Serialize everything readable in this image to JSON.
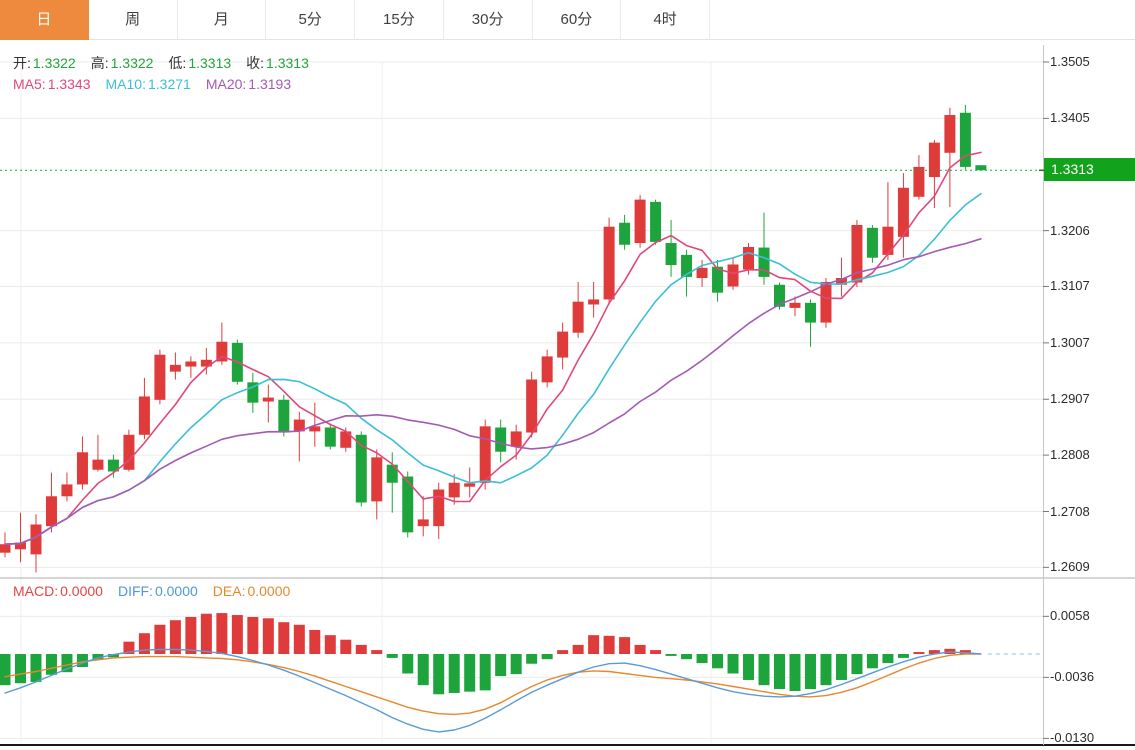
{
  "tabs": [
    {
      "label": "日",
      "active": true
    },
    {
      "label": "周",
      "active": false
    },
    {
      "label": "月",
      "active": false
    },
    {
      "label": "5分",
      "active": false
    },
    {
      "label": "15分",
      "active": false
    },
    {
      "label": "30分",
      "active": false
    },
    {
      "label": "60分",
      "active": false
    },
    {
      "label": "4时",
      "active": false
    }
  ],
  "ohlc_legend": [
    {
      "name": "open-value",
      "label": "开:",
      "value": "1.3322"
    },
    {
      "name": "high-value",
      "label": "高:",
      "value": "1.3322"
    },
    {
      "name": "low-value",
      "label": "低:",
      "value": "1.3313"
    },
    {
      "name": "close-value",
      "label": "收:",
      "value": "1.3313"
    }
  ],
  "ma_legend": [
    {
      "name": "ma5-value",
      "label": "MA5:",
      "value": "1.3343",
      "color": "#e0487c"
    },
    {
      "name": "ma10-value",
      "label": "MA10:",
      "value": "1.3271",
      "color": "#3bbfd6"
    },
    {
      "name": "ma20-value",
      "label": "MA20:",
      "value": "1.3193",
      "color": "#a45ab4"
    }
  ],
  "macd_legend": [
    {
      "name": "macd-value",
      "label": "MACD:",
      "value": "0.0000",
      "color": "#e04646"
    },
    {
      "name": "diff-value",
      "label": "DIFF:",
      "value": "0.0000",
      "color": "#4f97d9"
    },
    {
      "name": "dea-value",
      "label": "DEA:",
      "value": "0.0000",
      "color": "#e8872e"
    }
  ],
  "price_axis": {
    "ticks": [
      "1.3505",
      "1.3405",
      "1.3206",
      "1.3107",
      "1.3007",
      "1.2907",
      "1.2808",
      "1.2708",
      "1.2609"
    ]
  },
  "macd_axis": {
    "ticks": [
      "0.0058",
      "-0.0036",
      "-0.0130"
    ]
  },
  "current_price": {
    "label": "1.3313",
    "value": 1.3313
  },
  "colors": {
    "up": "#e03b3b",
    "down": "#1ea43c",
    "ma5": "#e0487c",
    "ma10": "#3bbfd6",
    "ma20": "#a45ab4",
    "diff_line": "#5b9bd5",
    "dea_line": "#e8872e",
    "tab_active_bg": "#ee8a3e",
    "price_tag_bg": "#12a21b",
    "current_line": "#1ca53c",
    "grid": "#ebebeb",
    "axis_border": "#c8c8c8",
    "separator": "#adadad",
    "bottom_border": "#191919"
  },
  "chart_data": {
    "type": "candlestick_with_macd",
    "title": "",
    "price_axis_range": [
      1.2591,
      1.3535
    ],
    "macd_axis_range": [
      -0.0141,
      0.0076
    ],
    "ma_periods": [
      5,
      10,
      20
    ],
    "current_price": 1.3313,
    "candles_ohlc": [
      [
        1.2635,
        1.2671,
        1.2627,
        1.265
      ],
      [
        1.2641,
        1.2706,
        1.2618,
        1.2653
      ],
      [
        1.2632,
        1.2703,
        1.26,
        1.2685
      ],
      [
        1.2682,
        1.2777,
        1.2671,
        1.2735
      ],
      [
        1.2735,
        1.2777,
        1.2726,
        1.2756
      ],
      [
        1.2756,
        1.2841,
        1.2747,
        1.2813
      ],
      [
        1.2782,
        1.2844,
        1.2779,
        1.28
      ],
      [
        1.28,
        1.2809,
        1.2768,
        1.2779
      ],
      [
        1.2782,
        1.2853,
        1.2779,
        1.2844
      ],
      [
        1.2844,
        1.2945,
        1.2836,
        1.2912
      ],
      [
        1.2906,
        1.2995,
        1.2898,
        1.2986
      ],
      [
        1.2956,
        1.299,
        1.2942,
        1.2968
      ],
      [
        1.2965,
        1.2983,
        1.2945,
        1.2974
      ],
      [
        1.2965,
        1.2998,
        1.2951,
        1.2977
      ],
      [
        1.2974,
        1.3043,
        1.2968,
        1.3009
      ],
      [
        1.3007,
        1.3013,
        1.2933,
        1.2938
      ],
      [
        1.2937,
        1.2954,
        1.2883,
        1.2901
      ],
      [
        1.2903,
        1.2933,
        1.2866,
        1.291
      ],
      [
        1.2906,
        1.2915,
        1.2841,
        1.2848
      ],
      [
        1.285,
        1.2885,
        1.2797,
        1.2871
      ],
      [
        1.285,
        1.2901,
        1.2823,
        1.2859
      ],
      [
        1.2857,
        1.2864,
        1.2818,
        1.2823
      ],
      [
        1.2821,
        1.2857,
        1.2814,
        1.285
      ],
      [
        1.2844,
        1.285,
        1.2717,
        1.2724
      ],
      [
        1.2726,
        1.2818,
        1.2694,
        1.2804
      ],
      [
        1.2791,
        1.2813,
        1.2706,
        1.2759
      ],
      [
        1.277,
        1.2779,
        1.2662,
        1.2671
      ],
      [
        1.2682,
        1.2735,
        1.2664,
        1.2694
      ],
      [
        1.2682,
        1.2759,
        1.2659,
        1.2747
      ],
      [
        1.2733,
        1.2774,
        1.272,
        1.2759
      ],
      [
        1.2752,
        1.2786,
        1.2733,
        1.2758
      ],
      [
        1.2759,
        1.2871,
        1.2747,
        1.2859
      ],
      [
        1.2857,
        1.2871,
        1.2795,
        1.2814
      ],
      [
        1.2823,
        1.2862,
        1.28,
        1.285
      ],
      [
        1.2848,
        1.2956,
        1.2839,
        1.2942
      ],
      [
        1.2937,
        1.2995,
        1.2928,
        1.2983
      ],
      [
        1.2981,
        1.3043,
        1.296,
        1.3027
      ],
      [
        1.3025,
        1.3115,
        1.3016,
        1.308
      ],
      [
        1.3075,
        1.3115,
        1.3052,
        1.3084
      ],
      [
        1.3084,
        1.3229,
        1.3075,
        1.3213
      ],
      [
        1.322,
        1.3234,
        1.3172,
        1.3181
      ],
      [
        1.3184,
        1.3269,
        1.3176,
        1.3261
      ],
      [
        1.3257,
        1.3261,
        1.3181,
        1.3186
      ],
      [
        1.3184,
        1.3225,
        1.3124,
        1.3145
      ],
      [
        1.3163,
        1.3172,
        1.3089,
        1.3124
      ],
      [
        1.3122,
        1.3154,
        1.3106,
        1.314
      ],
      [
        1.3142,
        1.3154,
        1.308,
        1.3096
      ],
      [
        1.3107,
        1.3158,
        1.3101,
        1.3146
      ],
      [
        1.3137,
        1.3184,
        1.3128,
        1.3177
      ],
      [
        1.3176,
        1.3238,
        1.311,
        1.3124
      ],
      [
        1.311,
        1.3114,
        1.3066,
        1.3071
      ],
      [
        1.3069,
        1.3089,
        1.3054,
        1.3078
      ],
      [
        1.3078,
        1.3084,
        1.3,
        1.3043
      ],
      [
        1.3043,
        1.3122,
        1.3034,
        1.3115
      ],
      [
        1.311,
        1.3158,
        1.3089,
        1.3122
      ],
      [
        1.3114,
        1.3225,
        1.3106,
        1.3216
      ],
      [
        1.3211,
        1.3216,
        1.3149,
        1.3158
      ],
      [
        1.3163,
        1.3292,
        1.3154,
        1.3213
      ],
      [
        1.3195,
        1.3308,
        1.3158,
        1.3282
      ],
      [
        1.3266,
        1.334,
        1.3261,
        1.3319
      ],
      [
        1.3301,
        1.3367,
        1.3246,
        1.3362
      ],
      [
        1.3344,
        1.3424,
        1.3248,
        1.3411
      ],
      [
        1.3415,
        1.3429,
        1.3314,
        1.3319
      ],
      [
        1.3322,
        1.3322,
        1.3313,
        1.3313
      ]
    ],
    "macd": {
      "scale": 0.0001,
      "hist": [
        -48,
        -45,
        -43,
        -32,
        -28,
        -20,
        -9,
        -5,
        19,
        32,
        45,
        52,
        57,
        62,
        63,
        60,
        57,
        55,
        49,
        45,
        37,
        29,
        22,
        14,
        6,
        -6,
        -30,
        -48,
        -62,
        -60,
        -58,
        -56,
        -34,
        -31,
        -15,
        -8,
        6,
        14,
        29,
        28,
        26,
        14,
        6,
        -3,
        -8,
        -14,
        -22,
        -30,
        -40,
        -48,
        -54,
        -57,
        -54,
        -48,
        -40,
        -31,
        -22,
        -14,
        -6,
        3,
        6,
        8,
        6,
        0
      ],
      "diff": [
        -60,
        -52,
        -43,
        -33,
        -23,
        -14,
        -6,
        -1,
        3,
        6,
        7,
        7,
        6,
        4,
        1,
        -4,
        -10,
        -17,
        -25,
        -34,
        -44,
        -54,
        -64,
        -75,
        -86,
        -98,
        -108,
        -116,
        -120,
        -117,
        -110,
        -99,
        -86,
        -72,
        -59,
        -48,
        -38,
        -28,
        -20,
        -15,
        -14,
        -18,
        -24,
        -31,
        -38,
        -45,
        -52,
        -58,
        -62,
        -65,
        -66,
        -65,
        -61,
        -55,
        -47,
        -38,
        -29,
        -20,
        -12,
        -5,
        0,
        3,
        2,
        0
      ],
      "dea": [
        -35,
        -31,
        -27,
        -22,
        -17,
        -12,
        -9,
        -6,
        -5,
        -4,
        -4,
        -4,
        -5,
        -6,
        -7,
        -9,
        -12,
        -16,
        -21,
        -27,
        -34,
        -42,
        -50,
        -58,
        -66,
        -74,
        -82,
        -88,
        -92,
        -93,
        -91,
        -85,
        -75,
        -62,
        -50,
        -40,
        -33,
        -28,
        -26,
        -27,
        -30,
        -33,
        -36,
        -38,
        -40,
        -43,
        -46,
        -50,
        -54,
        -58,
        -62,
        -65,
        -66,
        -64,
        -59,
        -52,
        -43,
        -33,
        -23,
        -14,
        -7,
        -2,
        0,
        0
      ]
    }
  }
}
